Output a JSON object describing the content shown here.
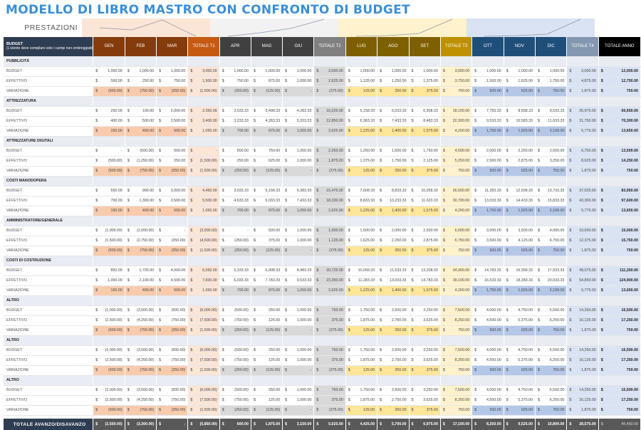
{
  "title": "MODELLO DI LIBRO MASTRO CON CONFRONTO DI BUDGET",
  "chart_band_label": "PRESTAZIONI",
  "header": {
    "first_title": "BUDGET",
    "first_note": "(L'utente deve compilare solo i campi non ombreggiati)",
    "columns": [
      "GEN",
      "FEB",
      "MAR",
      "TOTALE T1",
      "APR",
      "MAG",
      "GIU",
      "TOTALE T2",
      "LUG",
      "AGO",
      "SET",
      "TOTALE T3",
      "OTT",
      "NOV",
      "DIC",
      "TOTALE T4",
      "TOTALE ANNO"
    ]
  },
  "colors": {
    "title": "#3b8ed6",
    "q1_month": "#843c0c",
    "q1_total": "#c55a11",
    "q1_var": "#f8cbad",
    "q1_total_bg": "#fbe5d6",
    "q2_month": "#404040",
    "q2_total": "#808080",
    "q2_var": "#d9d9d9",
    "q2_total_bg": "#d9d9d9",
    "q3_month": "#7f6000",
    "q3_total": "#bf9000",
    "q3_var": "#ffe699",
    "q3_total_bg": "#fff2cc",
    "q4_month": "#1f4e79",
    "q4_total": "#8497b0",
    "q4_var": "#b4c7e7",
    "q4_total_bg": "#dae3f3",
    "anno_header": "#000000",
    "anno_bg": "#dae3f3"
  },
  "sections": [
    {
      "name": "PUBBLICITÀ",
      "rows": [
        {
          "label": "BUDGET",
          "values": [
            "1,000.00",
            "1,000.00",
            "1,000.00",
            "3,000.00",
            "1,000.00",
            "1,000.00",
            "1,000.00",
            "3,000.00",
            "1,000.00",
            "1,000.00",
            "1,000.00",
            "3,000.00",
            "1,000.00",
            "1,000.00",
            "1,000.00",
            "3,000.00",
            "12,000.00"
          ]
        },
        {
          "label": "EFFETTIVO",
          "values": [
            "500.00",
            "250.00",
            "750.00",
            "1,500.00",
            "750.00",
            "875.00",
            "1,000.00",
            "2,625.00",
            "1,125.00",
            "1,250.00",
            "1,375.00",
            "3,750.00",
            "1,500.00",
            "1,625.00",
            "1,750.00",
            "4,875.00",
            "12,750.00"
          ]
        },
        {
          "label": "VARIAZIONE",
          "values": [
            "(500.00)",
            "(750.00)",
            "(250.00)",
            "(1,500.00)",
            "(250.00)",
            "(125.00)",
            "-",
            "(375.00)",
            "125.00",
            "250.00",
            "375.00",
            "750.00",
            "500.00",
            "625.00",
            "750.00",
            "1,875.00",
            "750.00"
          ]
        }
      ]
    },
    {
      "name": "ATTREZZATURA",
      "rows": [
        {
          "label": "BUDGET",
          "values": [
            "250.00",
            "100.00",
            "2,000.00",
            "2,350.00",
            "2,533.33",
            "3,408.33",
            "4,283.33",
            "10,225.00",
            "5,158.33",
            "6,033.33",
            "6,908.33",
            "18,100.00",
            "7,783.33",
            "8,658.33",
            "9,533.33",
            "25,975.00",
            "56,650.00"
          ]
        },
        {
          "label": "EFFETTIVO",
          "values": [
            "400.00",
            "500.00",
            "2,500.00",
            "3,400.00",
            "3,233.33",
            "4,283.33",
            "5,333.33",
            "12,850.00",
            "6,383.33",
            "7,433.33",
            "8,483.33",
            "22,300.00",
            "9,533.33",
            "10,583.33",
            "11,633.33",
            "31,750.00",
            "70,300.00"
          ]
        },
        {
          "label": "VARIAZIONE",
          "values": [
            "150.00",
            "400.00",
            "500.00",
            "1,050.00",
            "700.00",
            "875.00",
            "1,050.00",
            "2,625.00",
            "1,225.00",
            "1,400.00",
            "1,575.00",
            "4,200.00",
            "1,750.00",
            "1,925.00",
            "2,100.00",
            "5,775.00",
            "13,650.00"
          ]
        }
      ]
    },
    {
      "name": "ATTREZZATURE DIGITALI",
      "rows": [
        {
          "label": "BUDGET",
          "values": [
            "-",
            "(500.00)",
            "500.00",
            "-",
            "500.00",
            "750.00",
            "1,000.00",
            "2,250.00",
            "1,250.00",
            "1,500.00",
            "1,750.00",
            "4,500.00",
            "2,000.00",
            "2,250.00",
            "2,500.00",
            "6,750.00",
            "13,500.00"
          ]
        },
        {
          "label": "EFFETTIVO",
          "values": [
            "(500.00)",
            "(1,250.00)",
            "250.00",
            "(1,500.00)",
            "250.00",
            "625.00",
            "1,000.00",
            "1,875.00",
            "1,375.00",
            "1,750.00",
            "2,125.00",
            "5,250.00",
            "2,500.00",
            "2,875.00",
            "3,250.00",
            "8,625.00",
            "14,250.00"
          ]
        },
        {
          "label": "VARIAZIONE",
          "values": [
            "(500.00)",
            "(750.00)",
            "(250.00)",
            "(1,500.00)",
            "(250.00)",
            "(125.00)",
            "-",
            "(375.00)",
            "125.00",
            "250.00",
            "375.00",
            "750.00",
            "500.00",
            "625.00",
            "750.00",
            "1,875.00",
            "750.00"
          ]
        }
      ]
    },
    {
      "name": "COSTI MANODOPERA",
      "rows": [
        {
          "label": "BUDGET",
          "values": [
            "550.00",
            "900.00",
            "3,000.00",
            "4,450.00",
            "3,933.33",
            "5,158.33",
            "6,383.33",
            "15,475.00",
            "7,608.33",
            "8,833.33",
            "10,058.33",
            "26,500.00",
            "11,283.33",
            "12,508.33",
            "13,733.33",
            "37,525.00",
            "83,950.00"
          ]
        },
        {
          "label": "EFFETTIVO",
          "values": [
            "700.00",
            "1,300.00",
            "3,500.00",
            "5,500.00",
            "4,633.33",
            "6,033.33",
            "7,433.33",
            "18,100.00",
            "8,833.33",
            "10,233.33",
            "11,633.33",
            "30,700.00",
            "13,033.33",
            "14,433.33",
            "15,833.33",
            "43,300.00",
            "97,600.00"
          ]
        },
        {
          "label": "VARIAZIONE",
          "values": [
            "150.00",
            "400.00",
            "500.00",
            "1,050.00",
            "700.00",
            "875.00",
            "1,050.00",
            "2,625.00",
            "1,225.00",
            "1,400.00",
            "1,575.00",
            "4,200.00",
            "1,750.00",
            "1,925.00",
            "2,100.00",
            "5,775.00",
            "13,650.00"
          ]
        }
      ]
    },
    {
      "name": "AMMINISTRATORE/GENERALE",
      "rows": [
        {
          "label": "BUDGET",
          "values": [
            "(1,000.00)",
            "(2,000.00)",
            "-",
            "(3,000.00)",
            "-",
            "500.00",
            "1,000.00",
            "1,500.00",
            "1,500.00",
            "2,000.00",
            "2,500.00",
            "6,000.00",
            "3,000.00",
            "3,500.00",
            "4,000.00",
            "10,500.00",
            "15,000.00"
          ]
        },
        {
          "label": "EFFETTIVO",
          "values": [
            "(1,500.00)",
            "(2,750.00)",
            "(250.00)",
            "(4,500.00)",
            "(250.00)",
            "375.00",
            "1,000.00",
            "1,125.00",
            "1,625.00",
            "2,250.00",
            "2,875.00",
            "6,750.00",
            "3,500.00",
            "4,125.00",
            "4,750.00",
            "12,375.00",
            "15,750.00"
          ]
        },
        {
          "label": "VARIAZIONE",
          "values": [
            "(500.00)",
            "(750.00)",
            "(250.00)",
            "(1,500.00)",
            "(250.00)",
            "(125.00)",
            "-",
            "(375.00)",
            "125.00",
            "250.00",
            "375.00",
            "750.00",
            "500.00",
            "625.00",
            "750.00",
            "1,875.00",
            "750.00"
          ]
        }
      ]
    },
    {
      "name": "COSTI DI COSTRUZIONE",
      "rows": [
        {
          "label": "BUDGET",
          "values": [
            "850.00",
            "1,700.00",
            "4,000.00",
            "6,550.00",
            "5,333.33",
            "6,908.33",
            "8,483.33",
            "20,725.00",
            "10,058.33",
            "11,633.33",
            "13,208.33",
            "34,900.00",
            "14,783.33",
            "16,358.33",
            "17,933.33",
            "49,075.00",
            "111,250.00"
          ]
        },
        {
          "label": "EFFETTIVO",
          "values": [
            "1,000.00",
            "2,100.00",
            "4,500.00",
            "7,600.00",
            "6,033.33",
            "7,783.33",
            "9,533.33",
            "23,350.00",
            "11,283.33",
            "13,033.33",
            "14,783.33",
            "39,100.00",
            "16,533.33",
            "18,283.33",
            "20,033.33",
            "54,850.00",
            "124,900.00"
          ]
        },
        {
          "label": "VARIAZIONE",
          "values": [
            "150.00",
            "400.00",
            "500.00",
            "1,050.00",
            "700.00",
            "875.00",
            "1,050.00",
            "2,625.00",
            "1,225.00",
            "1,400.00",
            "1,575.00",
            "4,200.00",
            "1,750.00",
            "1,925.00",
            "2,100.00",
            "5,775.00",
            "13,650.00"
          ]
        }
      ]
    },
    {
      "name": "ALTRO",
      "rows": [
        {
          "label": "BUDGET",
          "values": [
            "(2,000.00)",
            "(3,500.00)",
            "(500.00)",
            "(6,000.00)",
            "(500.00)",
            "250.00",
            "1,000.00",
            "750.00",
            "1,750.00",
            "2,500.00",
            "3,250.00",
            "7,500.00",
            "4,000.00",
            "4,750.00",
            "5,500.00",
            "14,250.00",
            "16,500.00"
          ]
        },
        {
          "label": "EFFETTIVO",
          "values": [
            "(2,500.00)",
            "(4,250.00)",
            "(750.00)",
            "(7,500.00)",
            "(750.00)",
            "125.00",
            "1,000.00",
            "375.00",
            "1,875.00",
            "2,750.00",
            "3,625.00",
            "8,250.00",
            "4,500.00",
            "5,375.00",
            "6,250.00",
            "16,125.00",
            "17,250.00"
          ]
        },
        {
          "label": "VARIAZIONE",
          "values": [
            "(500.00)",
            "(750.00)",
            "(250.00)",
            "(1,500.00)",
            "(250.00)",
            "(125.00)",
            "-",
            "(375.00)",
            "125.00",
            "250.00",
            "375.00",
            "750.00",
            "500.00",
            "625.00",
            "750.00",
            "1,875.00",
            "750.00"
          ]
        }
      ]
    },
    {
      "name": "ALTRO",
      "rows": [
        {
          "label": "BUDGET",
          "values": [
            "(2,000.00)",
            "(3,500.00)",
            "(500.00)",
            "(6,000.00)",
            "(500.00)",
            "250.00",
            "1,000.00",
            "750.00",
            "1,750.00",
            "2,500.00",
            "3,250.00",
            "7,500.00",
            "4,000.00",
            "4,750.00",
            "5,500.00",
            "14,250.00",
            "16,500.00"
          ]
        },
        {
          "label": "EFFETTIVO",
          "values": [
            "(2,500.00)",
            "(4,250.00)",
            "(750.00)",
            "(7,500.00)",
            "(750.00)",
            "125.00",
            "1,000.00",
            "375.00",
            "1,875.00",
            "2,750.00",
            "3,625.00",
            "8,250.00",
            "4,500.00",
            "5,375.00",
            "6,250.00",
            "16,125.00",
            "17,250.00"
          ]
        },
        {
          "label": "VARIAZIONE",
          "values": [
            "(500.00)",
            "(750.00)",
            "(250.00)",
            "(1,500.00)",
            "(250.00)",
            "(125.00)",
            "-",
            "(375.00)",
            "125.00",
            "250.00",
            "375.00",
            "750.00",
            "500.00",
            "625.00",
            "750.00",
            "1,875.00",
            "750.00"
          ]
        }
      ]
    },
    {
      "name": "ALTRO",
      "rows": [
        {
          "label": "BUDGET",
          "values": [
            "(2,000.00)",
            "(3,500.00)",
            "(500.00)",
            "(6,000.00)",
            "(500.00)",
            "250.00",
            "1,000.00",
            "750.00",
            "1,750.00",
            "2,500.00",
            "3,250.00",
            "7,500.00",
            "4,000.00",
            "4,750.00",
            "5,500.00",
            "14,250.00",
            "16,500.00"
          ]
        },
        {
          "label": "EFFETTIVO",
          "values": [
            "(2,500.00)",
            "(4,250.00)",
            "(750.00)",
            "(7,500.00)",
            "(750.00)",
            "125.00",
            "1,000.00",
            "375.00",
            "1,875.00",
            "2,750.00",
            "3,625.00",
            "8,250.00",
            "4,500.00",
            "5,375.00",
            "6,250.00",
            "16,125.00",
            "17,250.00"
          ]
        },
        {
          "label": "VARIAZIONE",
          "values": [
            "(500.00)",
            "(750.00)",
            "(250.00)",
            "(1,500.00)",
            "(250.00)",
            "(125.00)",
            "-",
            "(375.00)",
            "125.00",
            "250.00",
            "375.00",
            "750.00",
            "500.00",
            "625.00",
            "750.00",
            "1,875.00",
            "750.00"
          ]
        }
      ]
    }
  ],
  "total": {
    "label": "TOTALE AVANZO/DISAVANZO",
    "values": [
      "(2,550.00)",
      "(3,300.00)",
      "-",
      "(5,850.00)",
      "600.00",
      "1,875.00",
      "3,150.00",
      "5,625.00",
      "4,425.00",
      "5,700.00",
      "6,975.00",
      "17,100.00",
      "8,250.00",
      "9,525.00",
      "10,800.00",
      "28,575.00",
      "45,450.00"
    ]
  },
  "currency_symbol": "$"
}
